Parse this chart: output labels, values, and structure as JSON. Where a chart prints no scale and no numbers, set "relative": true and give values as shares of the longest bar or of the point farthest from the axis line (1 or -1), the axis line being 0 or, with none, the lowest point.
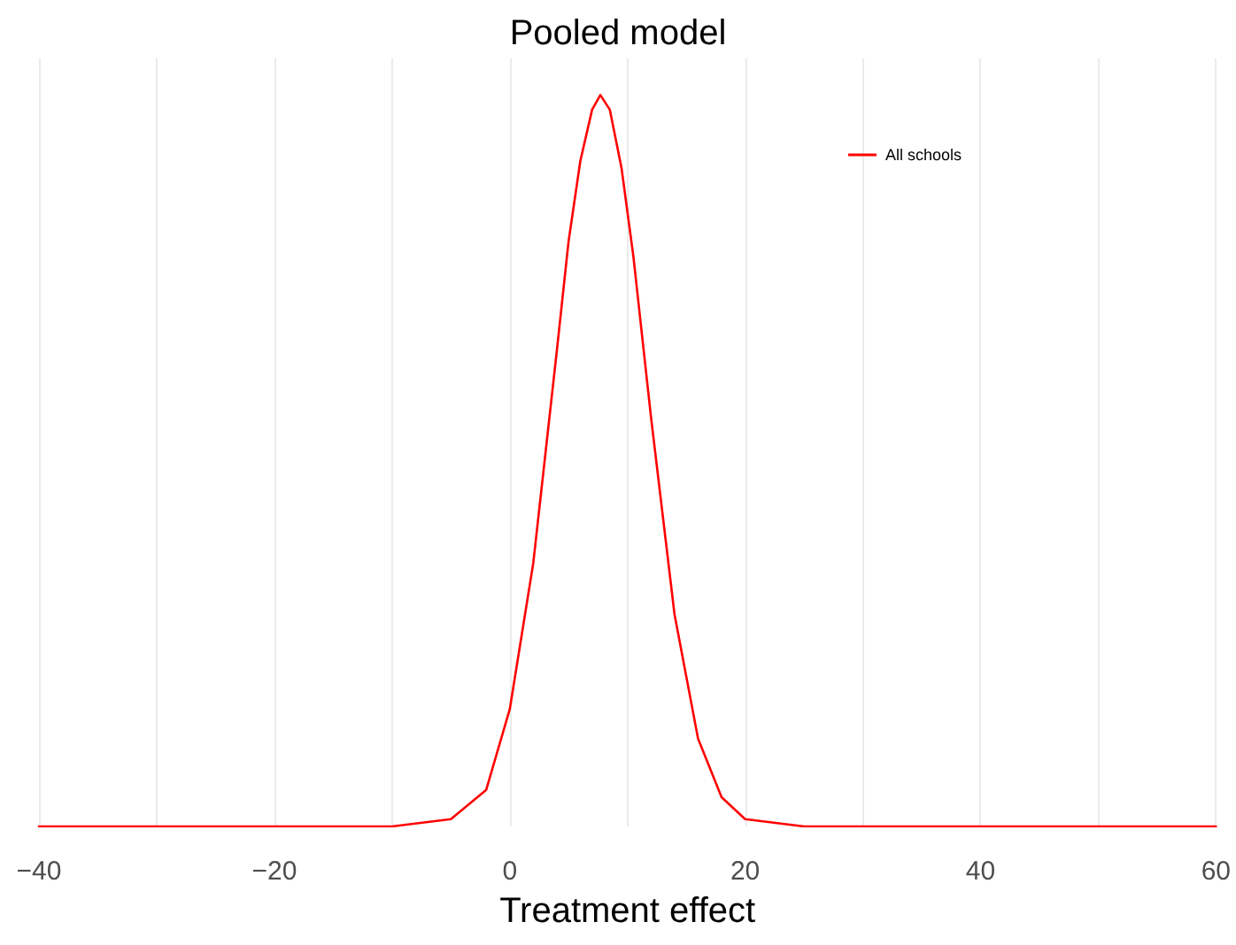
{
  "chart_data": {
    "type": "line",
    "title": "Pooled model",
    "xlabel": "Treatment effect",
    "relative": true,
    "series": [
      {
        "name": "All schools",
        "color": "#ff0000",
        "x": [
          -40,
          -10,
          -5,
          -2,
          0,
          2,
          4,
          5,
          6,
          7,
          7.7,
          8.5,
          9.5,
          10.5,
          12,
          14,
          16,
          18,
          20,
          25,
          60
        ],
        "values": [
          0,
          0,
          0.01,
          0.05,
          0.16,
          0.36,
          0.65,
          0.8,
          0.91,
          0.98,
          1,
          0.98,
          0.9,
          0.78,
          0.56,
          0.29,
          0.12,
          0.04,
          0.01,
          0,
          0
        ]
      }
    ],
    "xlim": [
      -40,
      60
    ],
    "xticks": [
      {
        "value": -40,
        "label": "−40"
      },
      {
        "value": -30,
        "label": null
      },
      {
        "value": -20,
        "label": "−20"
      },
      {
        "value": -10,
        "label": null
      },
      0,
      {
        "value": 10,
        "label": null
      },
      20,
      {
        "value": 30,
        "label": null
      },
      40,
      {
        "value": 50,
        "label": null
      },
      60
    ],
    "grid": "x",
    "legend": "top right",
    "marker": "none",
    "line_style": "solid"
  }
}
